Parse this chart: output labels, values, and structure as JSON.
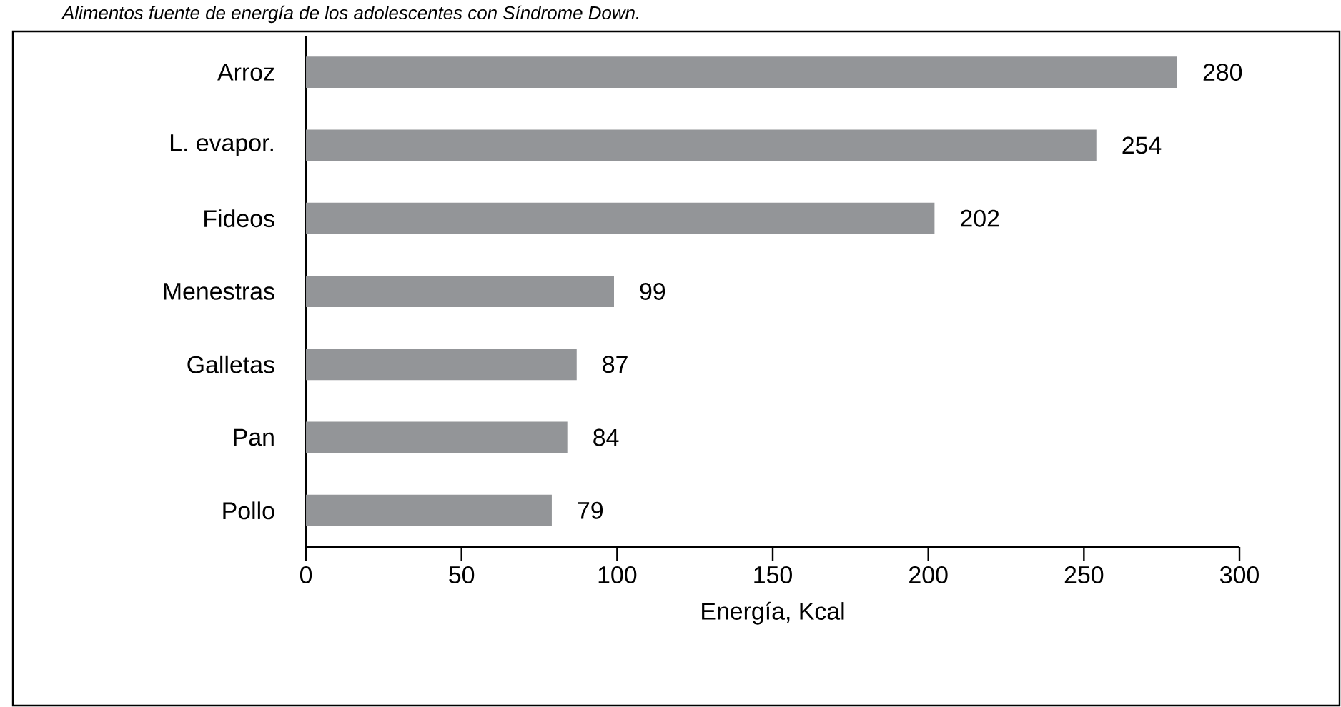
{
  "chart_data": {
    "type": "bar",
    "orientation": "horizontal",
    "title": "Alimentos fuente de energía de los adolescentes con Síndrome Down.",
    "xlabel": "Energía, Kcal",
    "categories": [
      "Arroz",
      "L. evapor.",
      "Fideos",
      "Menestras",
      "Galletas",
      "Pan",
      "Pollo"
    ],
    "values": [
      280,
      254,
      202,
      99,
      87,
      84,
      79
    ],
    "color": "#939598",
    "data_labels": true,
    "xlim": [
      0,
      300
    ],
    "xticks": [
      0,
      50,
      100,
      150,
      200,
      250,
      300
    ]
  }
}
